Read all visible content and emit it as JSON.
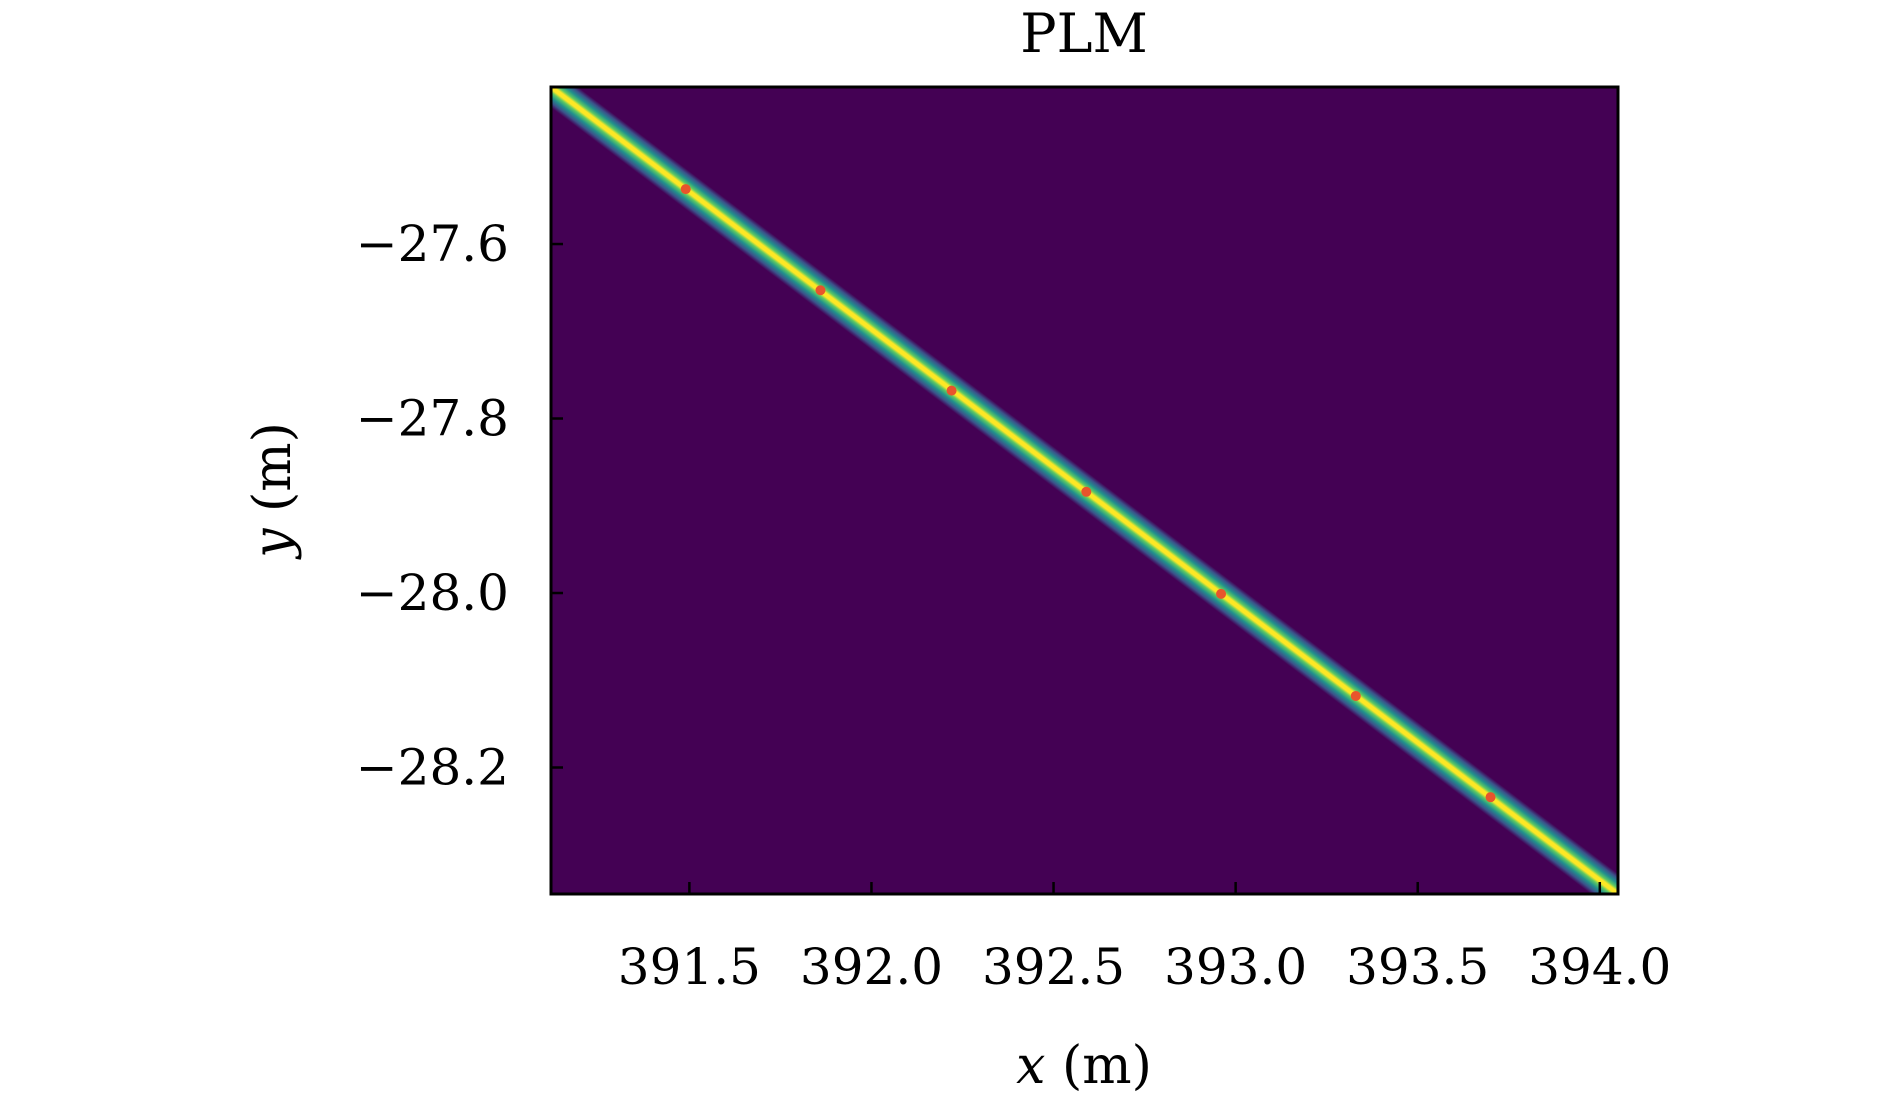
{
  "chart_data": {
    "type": "heatmap",
    "title": "PLM",
    "xlabel_var": "x",
    "xlabel_unit": " (m)",
    "ylabel_var": "y",
    "ylabel_unit": " (m)",
    "xlim": [
      391.12,
      394.05
    ],
    "ylim": [
      -28.345,
      -27.42
    ],
    "xticks": [
      391.5,
      392.0,
      392.5,
      393.0,
      393.5,
      394.0
    ],
    "xtick_labels": [
      "391.5",
      "392.0",
      "392.5",
      "393.0",
      "393.5",
      "394.0"
    ],
    "yticks": [
      -27.6,
      -27.8,
      -28.0,
      -28.2
    ],
    "ytick_labels": [
      "−27.6",
      "−27.8",
      "−28.0",
      "−28.2"
    ],
    "colormap": "viridis",
    "background_color": "#440154",
    "band_center_color": "#fde725",
    "band_line": {
      "start": [
        391.12,
        -27.42
      ],
      "end": [
        394.05,
        -28.345
      ],
      "half_width_m": 0.045
    },
    "points": [
      {
        "x": 391.49,
        "y": -27.537
      },
      {
        "x": 391.86,
        "y": -27.653
      },
      {
        "x": 392.22,
        "y": -27.768
      },
      {
        "x": 392.59,
        "y": -27.884
      },
      {
        "x": 392.96,
        "y": -28.001
      },
      {
        "x": 393.33,
        "y": -28.118
      },
      {
        "x": 393.7,
        "y": -28.234
      }
    ],
    "point_color": "#e8542c",
    "grid": false
  }
}
